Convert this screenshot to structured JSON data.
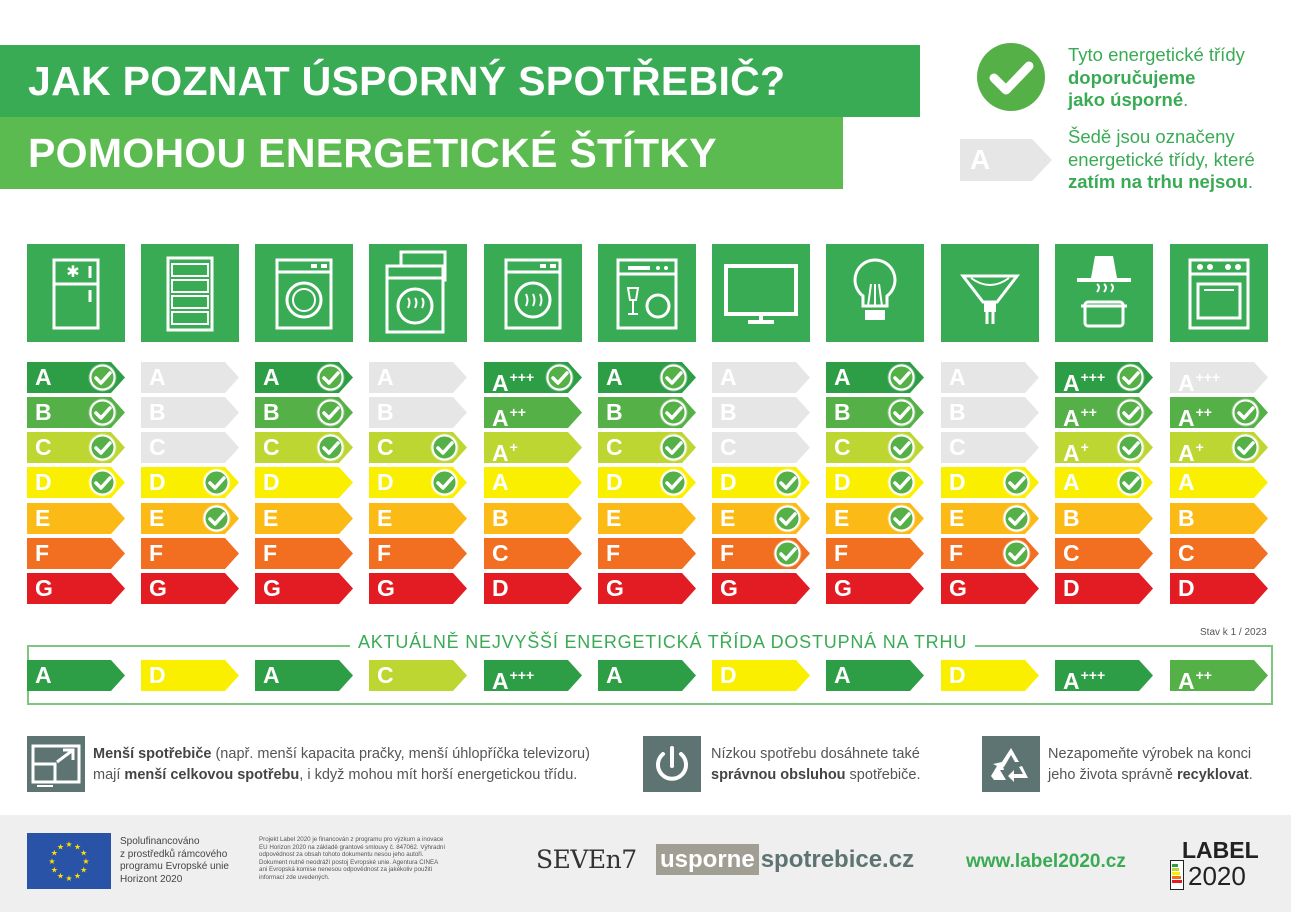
{
  "header": {
    "title_line1": "JAK POZNAT ÚSPORNÝ SPOTŘEBIČ?",
    "title_line2": "POMOHOU ENERGETICKÉ ŠTÍTKY"
  },
  "legend": {
    "recommended_pre": "Tyto energetické třídy",
    "recommended_bold1": "doporučujeme",
    "recommended_bold2": "jako úsporné",
    "recommended_post": ".",
    "grey_sample": "A",
    "grey_pre1": "Šedě jsou označeny",
    "grey_pre2": "energetické třídy, které",
    "grey_bold": "zatím na trhu nejsou",
    "grey_post": "."
  },
  "colors": {
    "green_dark": "#2e9e46",
    "green": "#55b047",
    "yellow_green": "#bdd631",
    "yellow": "#fbef00",
    "orange_light": "#fbba16",
    "orange": "#f26e21",
    "red": "#e31b23",
    "grey": "#e6e6e6",
    "brand_green": "#3aab55"
  },
  "appliances": [
    {
      "icon": "fridge-icon",
      "rows": [
        [
          "A",
          "",
          "gd",
          true
        ],
        [
          "B",
          "",
          "g",
          true
        ],
        [
          "C",
          "",
          "yg",
          true
        ],
        [
          "D",
          "",
          "y",
          true
        ],
        [
          "E",
          "",
          "ol",
          false
        ],
        [
          "F",
          "",
          "o",
          false
        ],
        [
          "G",
          "",
          "r",
          false
        ]
      ],
      "best": [
        "A",
        "",
        "gd"
      ]
    },
    {
      "icon": "wine-cooler-icon",
      "rows": [
        [
          "A",
          "",
          "gray",
          false
        ],
        [
          "B",
          "",
          "gray",
          false
        ],
        [
          "C",
          "",
          "gray",
          false
        ],
        [
          "D",
          "",
          "y",
          true
        ],
        [
          "E",
          "",
          "ol",
          true
        ],
        [
          "F",
          "",
          "o",
          false
        ],
        [
          "G",
          "",
          "r",
          false
        ]
      ],
      "best": [
        "D",
        "",
        "y"
      ]
    },
    {
      "icon": "washing-machine-icon",
      "rows": [
        [
          "A",
          "",
          "gd",
          true
        ],
        [
          "B",
          "",
          "g",
          true
        ],
        [
          "C",
          "",
          "yg",
          true
        ],
        [
          "D",
          "",
          "y",
          false
        ],
        [
          "E",
          "",
          "ol",
          false
        ],
        [
          "F",
          "",
          "o",
          false
        ],
        [
          "G",
          "",
          "r",
          false
        ]
      ],
      "best": [
        "A",
        "",
        "gd"
      ]
    },
    {
      "icon": "washer-dryer-icon",
      "rows": [
        [
          "A",
          "",
          "gray",
          false
        ],
        [
          "B",
          "",
          "gray",
          false
        ],
        [
          "C",
          "",
          "yg",
          true
        ],
        [
          "D",
          "",
          "y",
          true
        ],
        [
          "E",
          "",
          "ol",
          false
        ],
        [
          "F",
          "",
          "o",
          false
        ],
        [
          "G",
          "",
          "r",
          false
        ]
      ],
      "best": [
        "C",
        "",
        "yg"
      ]
    },
    {
      "icon": "tumble-dryer-icon",
      "rows": [
        [
          "A",
          "+++",
          "gd",
          true
        ],
        [
          "A",
          "++",
          "g",
          false
        ],
        [
          "A",
          "+",
          "yg",
          false
        ],
        [
          "A",
          "",
          "y",
          false
        ],
        [
          "B",
          "",
          "ol",
          false
        ],
        [
          "C",
          "",
          "o",
          false
        ],
        [
          "D",
          "",
          "r",
          false
        ]
      ],
      "best": [
        "A",
        "+++",
        "gd"
      ]
    },
    {
      "icon": "dishwasher-icon",
      "rows": [
        [
          "A",
          "",
          "gd",
          true
        ],
        [
          "B",
          "",
          "g",
          true
        ],
        [
          "C",
          "",
          "yg",
          true
        ],
        [
          "D",
          "",
          "y",
          true
        ],
        [
          "E",
          "",
          "ol",
          false
        ],
        [
          "F",
          "",
          "o",
          false
        ],
        [
          "G",
          "",
          "r",
          false
        ]
      ],
      "best": [
        "A",
        "",
        "gd"
      ]
    },
    {
      "icon": "television-icon",
      "rows": [
        [
          "A",
          "",
          "gray",
          false
        ],
        [
          "B",
          "",
          "gray",
          false
        ],
        [
          "C",
          "",
          "gray",
          false
        ],
        [
          "D",
          "",
          "y",
          true
        ],
        [
          "E",
          "",
          "ol",
          true
        ],
        [
          "F",
          "",
          "o",
          true
        ],
        [
          "G",
          "",
          "r",
          false
        ]
      ],
      "best": [
        "D",
        "",
        "y"
      ]
    },
    {
      "icon": "light-bulb-icon",
      "rows": [
        [
          "A",
          "",
          "gd",
          true
        ],
        [
          "B",
          "",
          "g",
          true
        ],
        [
          "C",
          "",
          "yg",
          true
        ],
        [
          "D",
          "",
          "y",
          true
        ],
        [
          "E",
          "",
          "ol",
          true
        ],
        [
          "F",
          "",
          "o",
          false
        ],
        [
          "G",
          "",
          "r",
          false
        ]
      ],
      "best": [
        "A",
        "",
        "gd"
      ]
    },
    {
      "icon": "spot-lamp-icon",
      "rows": [
        [
          "A",
          "",
          "gray",
          false
        ],
        [
          "B",
          "",
          "gray",
          false
        ],
        [
          "C",
          "",
          "gray",
          false
        ],
        [
          "D",
          "",
          "y",
          true
        ],
        [
          "E",
          "",
          "ol",
          true
        ],
        [
          "F",
          "",
          "o",
          true
        ],
        [
          "G",
          "",
          "r",
          false
        ]
      ],
      "best": [
        "D",
        "",
        "y"
      ]
    },
    {
      "icon": "cooker-hood-icon",
      "rows": [
        [
          "A",
          "+++",
          "gd",
          true
        ],
        [
          "A",
          "++",
          "g",
          true
        ],
        [
          "A",
          "+",
          "yg",
          true
        ],
        [
          "A",
          "",
          "y",
          true
        ],
        [
          "B",
          "",
          "ol",
          false
        ],
        [
          "C",
          "",
          "o",
          false
        ],
        [
          "D",
          "",
          "r",
          false
        ]
      ],
      "best": [
        "A",
        "+++",
        "gd"
      ]
    },
    {
      "icon": "oven-icon",
      "rows": [
        [
          "A",
          "+++",
          "gray",
          false
        ],
        [
          "A",
          "++",
          "g",
          true
        ],
        [
          "A",
          "+",
          "yg",
          true
        ],
        [
          "A",
          "",
          "y",
          false
        ],
        [
          "B",
          "",
          "ol",
          false
        ],
        [
          "C",
          "",
          "o",
          false
        ],
        [
          "D",
          "",
          "r",
          false
        ]
      ],
      "best": [
        "A",
        "++",
        "g"
      ]
    }
  ],
  "available": {
    "title": "AKTUÁLNĚ NEJVYŠŠÍ ENERGETICKÁ TŘÍDA DOSTUPNÁ NA TRHU",
    "status": "Stav k 1 / 2023"
  },
  "tips": {
    "tip1_bold1": "Menší spotřebiče",
    "tip1_text1": " (např. menší kapacita pračky, menší úhlopříčka televizoru)",
    "tip1_text2": "mají ",
    "tip1_bold2": "menší celkovou spotřebu",
    "tip1_text3": ", i když mohou mít horší energetickou třídu.",
    "tip2_text1": "Nízkou spotřebu dosáhnete také",
    "tip2_bold": "správnou obsluhou",
    "tip2_text2": " spotřebiče.",
    "tip3_text1": "Nezapomeňte výrobek na konci",
    "tip3_text2": "jeho života správně ",
    "tip3_bold": "recyklovat",
    "tip3_text3": "."
  },
  "footer": {
    "eu_text": [
      "Spolufinancováno",
      "z prostředků rámcového",
      "programu Evropské unie",
      "Horizont 2020"
    ],
    "fine_print": [
      "Projekt Label 2020 je financován z programu pro výzkum a inovace",
      "EU Horizon 2020 na základě grantové smlouvy č. 847062. Výhradní",
      "odpovědnost za obsah tohoto dokumentu nesou jeho autoři.",
      "Dokument nutně neodráží postoj Evropské unie. Agentura CINEA",
      "ani Evropská komise nenesou odpovědnost za jakékoliv použití",
      "informací zde uvedených."
    ],
    "seven_logo": "SEVEn7",
    "usporne_part1": "usporne",
    "usporne_part2": "spotrebice.cz",
    "url": "www.label2020.cz",
    "label_logo_top": "LABEL",
    "label_logo_bottom": "2020"
  }
}
